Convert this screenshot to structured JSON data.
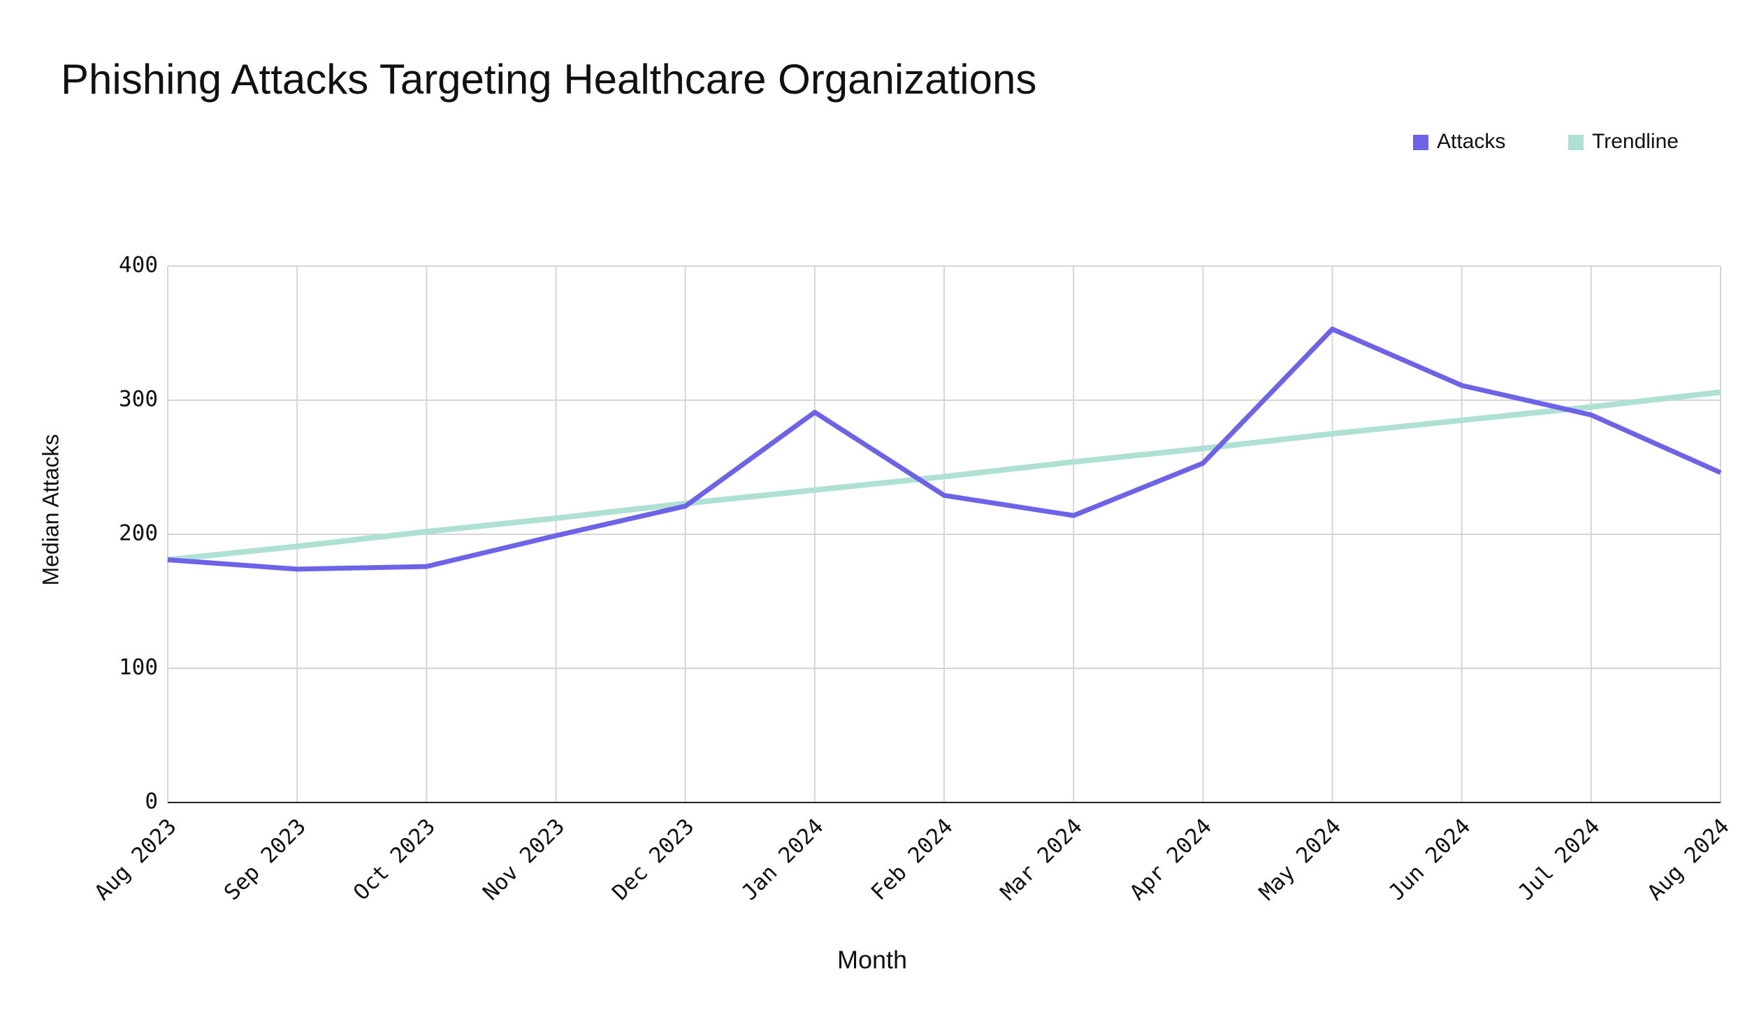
{
  "chart_data": {
    "type": "line",
    "title": "Phishing Attacks Targeting Healthcare Organizations",
    "x_label": "Month",
    "y_label": "Median Attacks",
    "x": [
      "Aug 2023",
      "Sep 2023",
      "Oct 2023",
      "Nov 2023",
      "Dec 2023",
      "Jan 2024",
      "Feb 2024",
      "Mar 2024",
      "Apr 2024",
      "May 2024",
      "Jun 2024",
      "Jul 2024",
      "Aug 2024"
    ],
    "series": [
      {
        "name": "Attacks",
        "color": "#6c63e8",
        "values": [
          181,
          174,
          176,
          199,
          221,
          291,
          229,
          214,
          253,
          353,
          311,
          289,
          246
        ]
      },
      {
        "name": "Trendline",
        "color": "#aee0d4",
        "values": [
          181,
          191,
          202,
          212,
          223,
          233,
          243,
          254,
          264,
          275,
          285,
          295,
          306
        ]
      }
    ],
    "ylim": [
      0,
      400
    ],
    "yticks": [
      0,
      100,
      200,
      300,
      400
    ],
    "grid": true,
    "legend": "top-right"
  }
}
